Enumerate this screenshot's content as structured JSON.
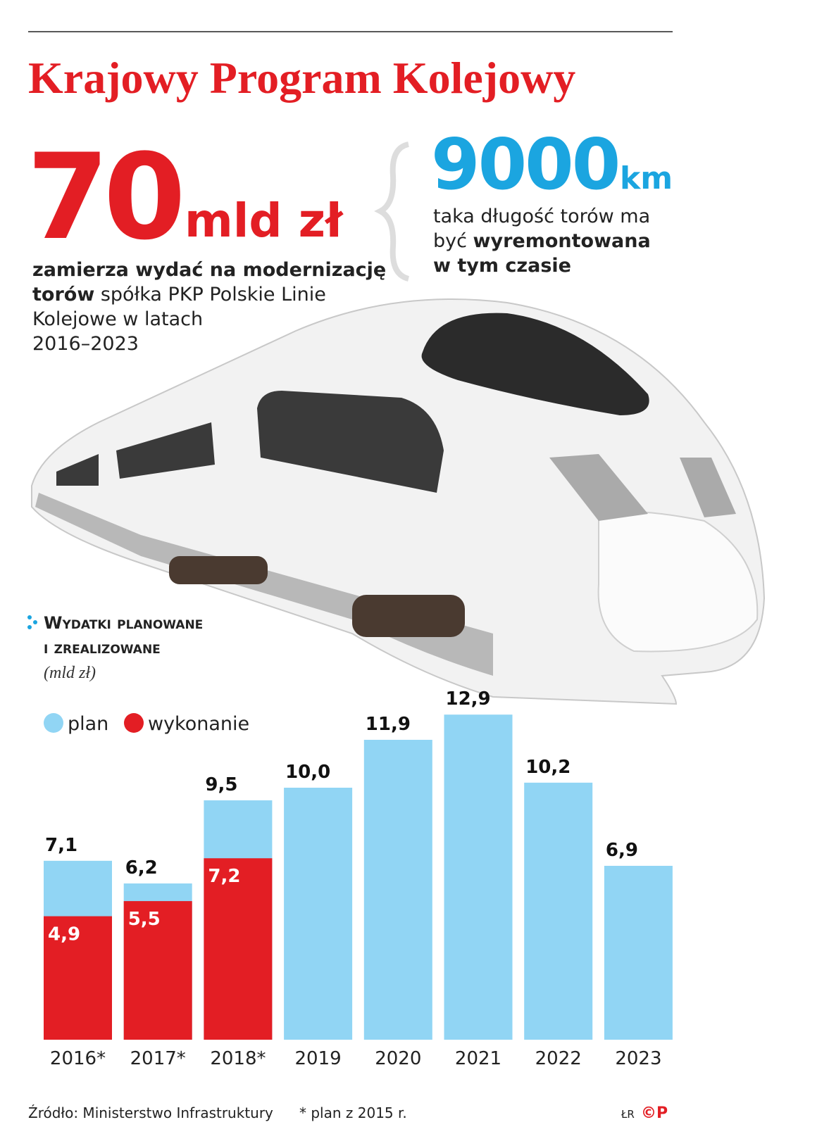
{
  "header": {
    "title": "Krajowy Program Kolejowy"
  },
  "stat_left": {
    "number": "70",
    "unit": "mld zł",
    "lines": [
      [
        {
          "text": "zamierza wydać na modernizację",
          "bold": true
        }
      ],
      [
        {
          "text": "torów",
          "bold": true
        },
        {
          "text": " spółka PKP Polskie Linie"
        }
      ],
      [
        {
          "text": "Kolejowe w latach"
        }
      ],
      [
        {
          "text": "2016–2023"
        }
      ]
    ]
  },
  "stat_right": {
    "number": "9000",
    "unit": "km",
    "lines": [
      [
        {
          "text": "taka długość torów ma"
        }
      ],
      [
        {
          "text": "być "
        },
        {
          "text": "wyremontowana",
          "bold": true
        }
      ],
      [
        {
          "text": "w tym czasie",
          "bold": true
        }
      ]
    ]
  },
  "chart_data": {
    "type": "bar",
    "title_lines": [
      "Wydatki planowane",
      "i zrealizowane"
    ],
    "subtitle": "(mld zł)",
    "categories": [
      "2016*",
      "2017*",
      "2018*",
      "2019",
      "2020",
      "2021",
      "2022",
      "2023"
    ],
    "series": [
      {
        "name": "plan",
        "color": "#91d5f4",
        "values": [
          7.1,
          6.2,
          9.5,
          10.0,
          11.9,
          12.9,
          10.2,
          6.9
        ],
        "value_labels": [
          "7,1",
          "6,2",
          "9,5",
          "10,0",
          "11,9",
          "12,9",
          "10,2",
          "6,9"
        ]
      },
      {
        "name": "wykonanie",
        "color": "#e31e24",
        "values": [
          4.9,
          5.5,
          7.2,
          null,
          null,
          null,
          null,
          null
        ],
        "value_labels": [
          "4,9",
          "5,5",
          "7,2",
          null,
          null,
          null,
          null,
          null
        ]
      }
    ]
  },
  "footer": {
    "source": "Źródło: Ministerstwo Infrastruktury",
    "note": "* plan z 2015 r.",
    "author": "ŁR",
    "logo": "©P"
  }
}
